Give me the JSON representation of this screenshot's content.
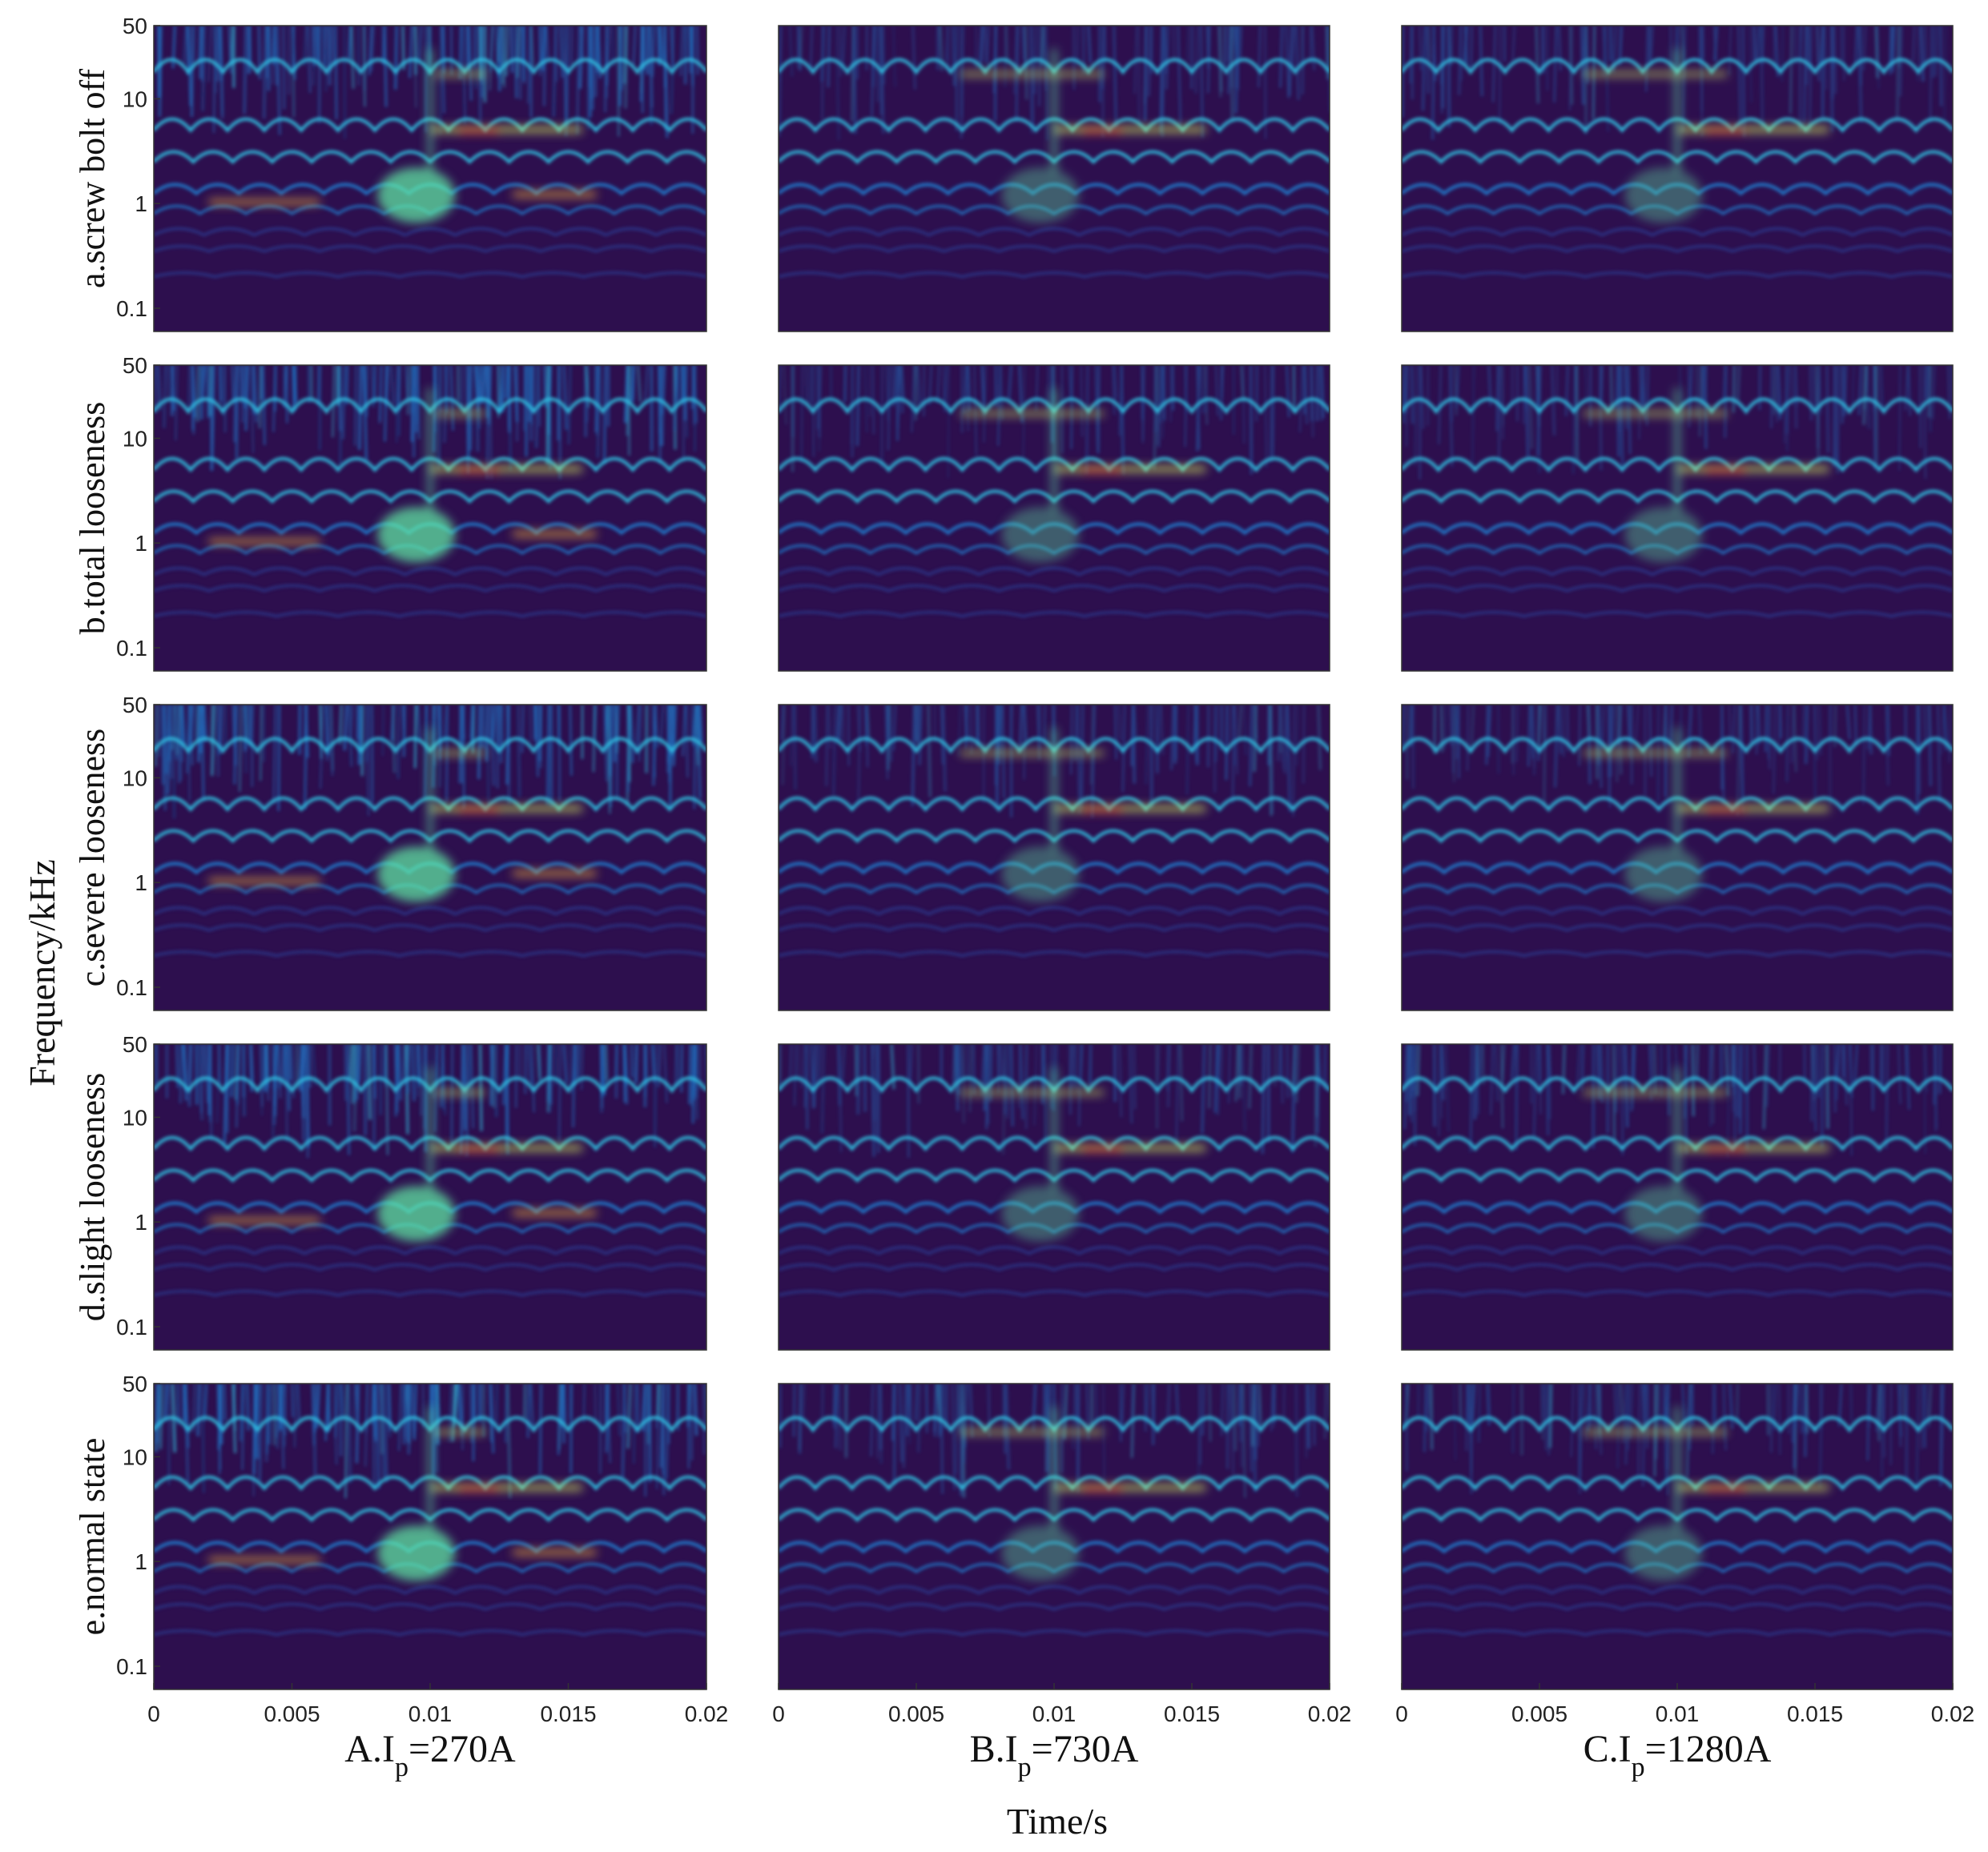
{
  "chart_data": {
    "type": "heatmap",
    "grid_layout": {
      "rows": 5,
      "cols": 3
    },
    "xlabel": "Time/s",
    "ylabel": "Frequency/kHz",
    "x_scale": "linear",
    "y_scale": "log",
    "xlim": [
      0,
      0.02
    ],
    "ylim": [
      0.06,
      50
    ],
    "x_ticks": [
      0,
      0.005,
      0.01,
      0.015,
      0.02
    ],
    "x_tick_labels": [
      "0",
      "0.005",
      "0.01",
      "0.015",
      "0.02"
    ],
    "y_ticks": [
      0.1,
      1,
      10,
      50
    ],
    "y_tick_labels": [
      "0.1",
      "1",
      "10",
      "50"
    ],
    "colormap": [
      "#2d0f4e",
      "#2a3a8f",
      "#1f7fd1",
      "#31c5e6",
      "#62f2a8",
      "#d9f35a",
      "#f5b33b",
      "#e8402b"
    ],
    "rows": [
      "a.screw bolt off",
      "b.total looseness",
      "c.severe looseness",
      "d.slight looseness",
      "e.normal state"
    ],
    "columns": [
      {
        "prefix": "A.I",
        "sub": "p",
        "suffix": "=270A"
      },
      {
        "prefix": "B.I",
        "sub": "p",
        "suffix": "=730A"
      },
      {
        "prefix": "C.I",
        "sub": "p",
        "suffix": "=1280A"
      }
    ]
  }
}
